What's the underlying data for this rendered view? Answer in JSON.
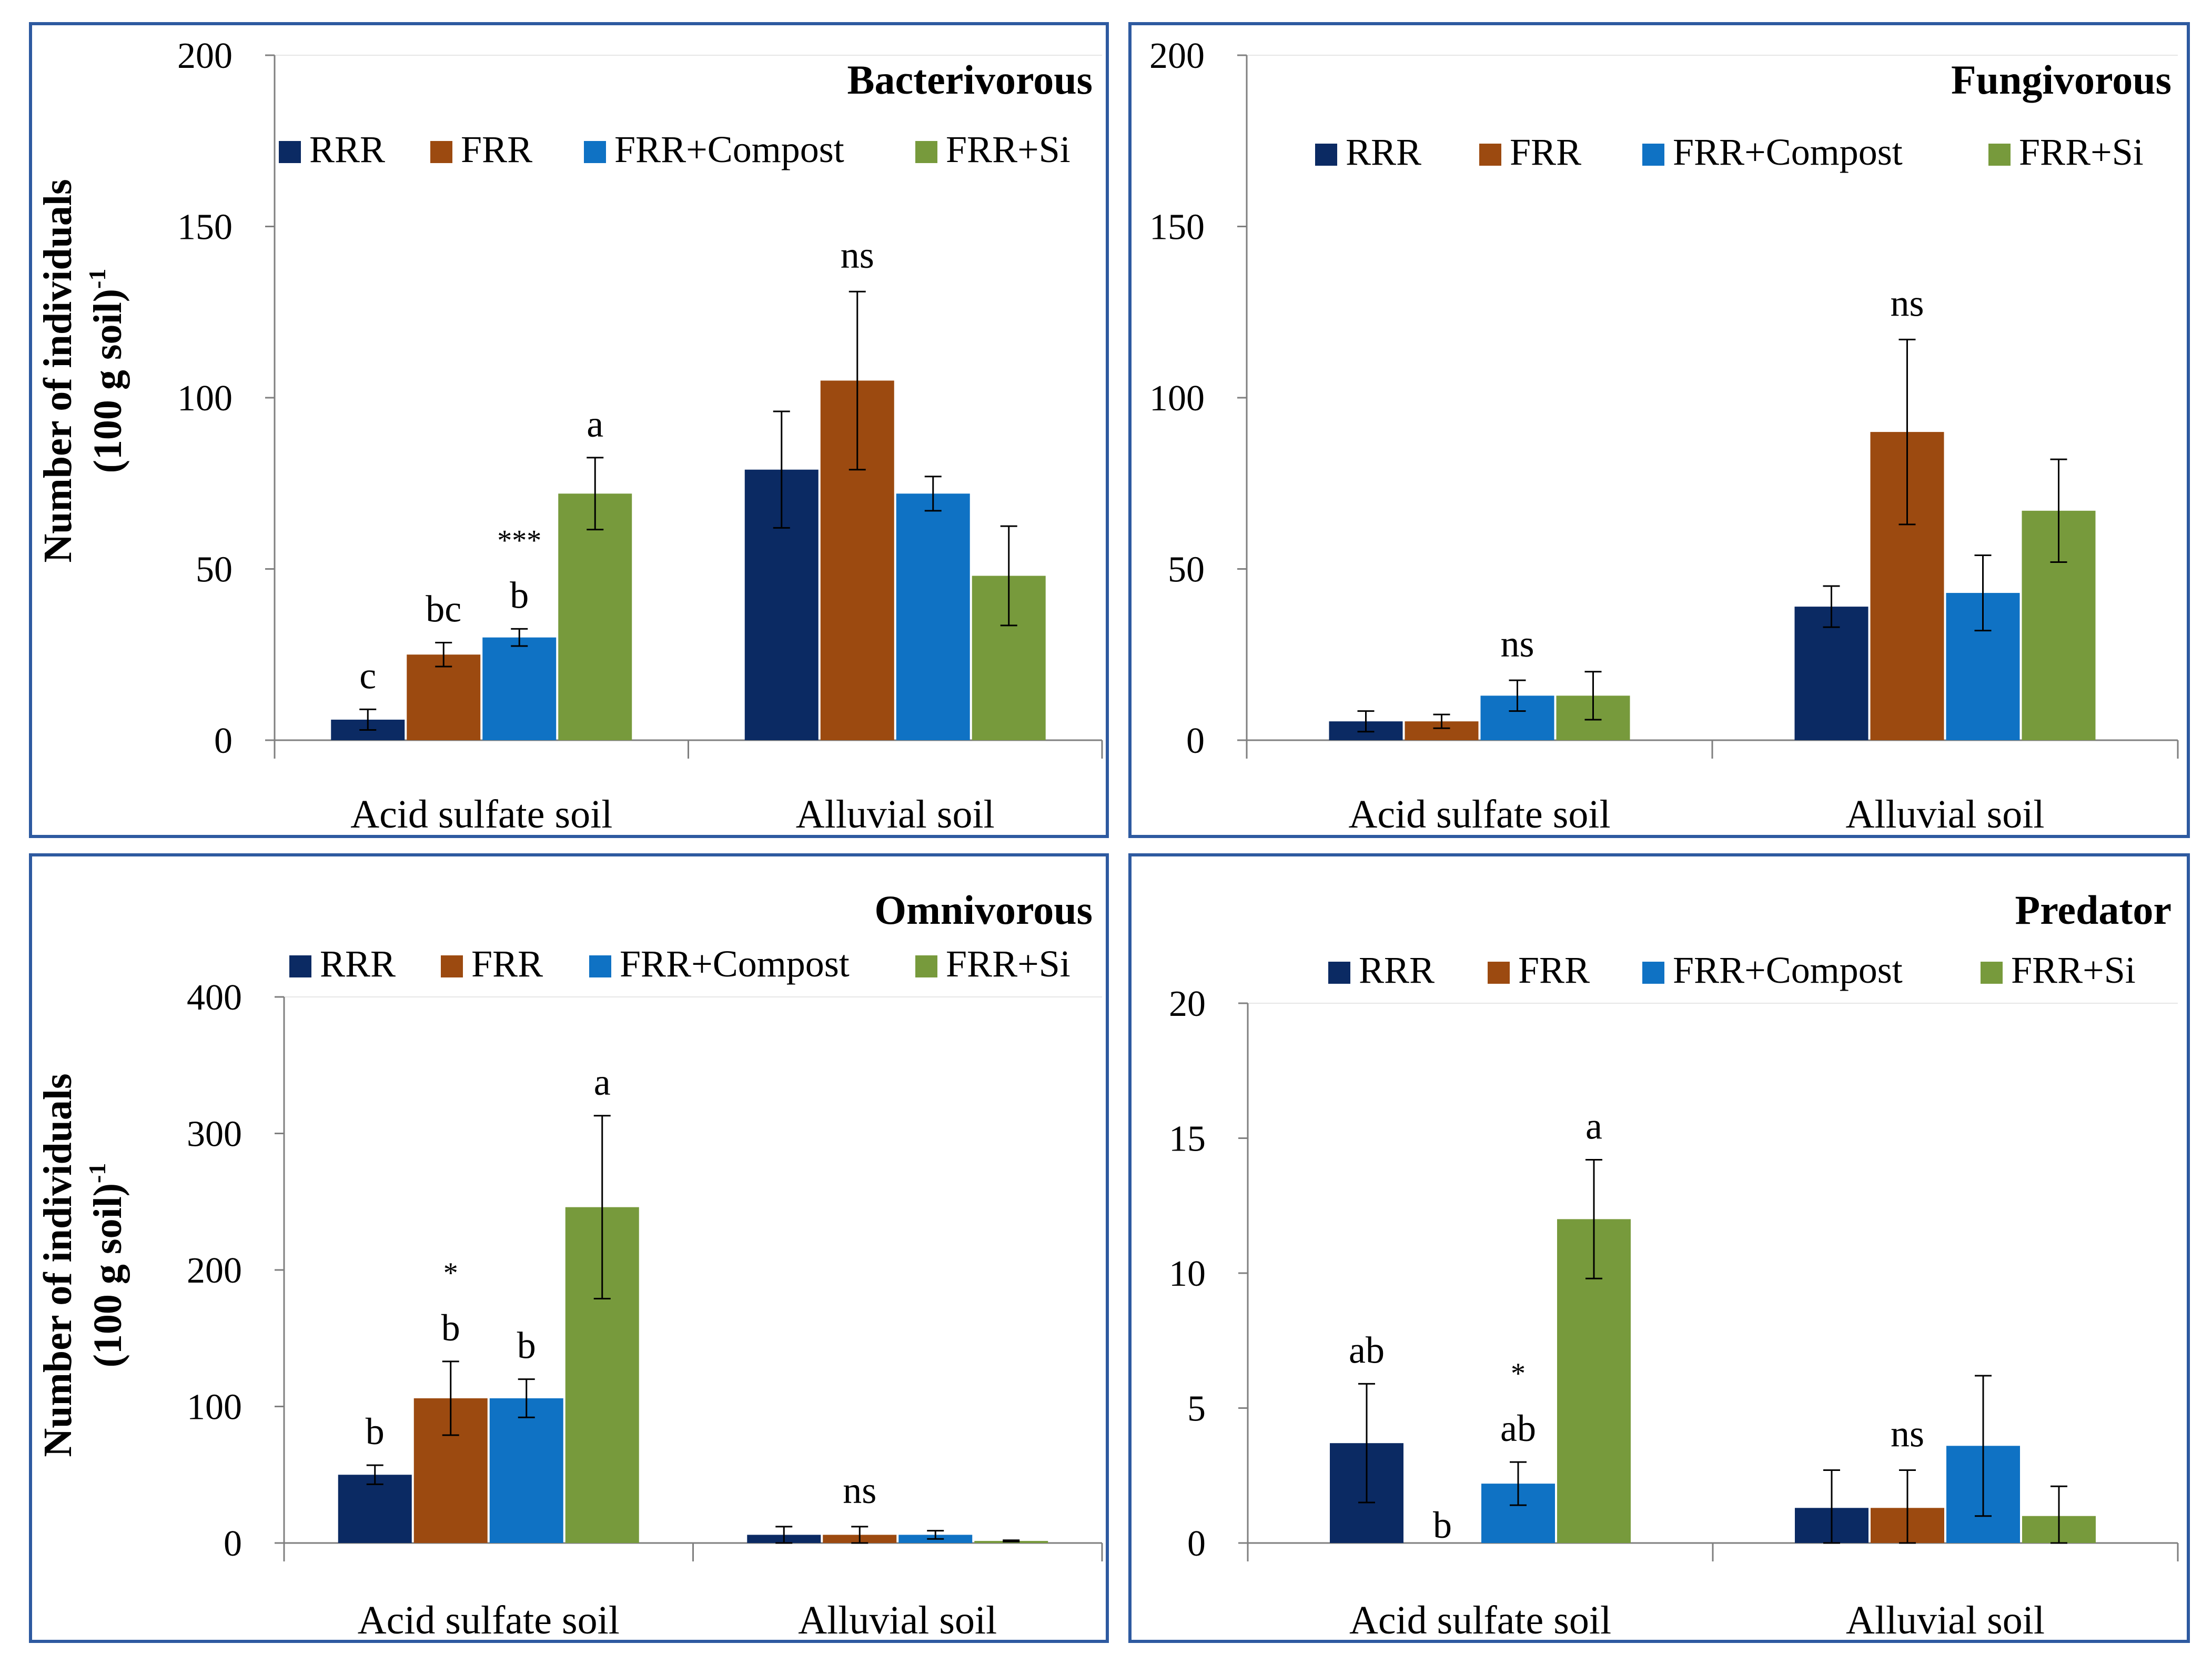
{
  "colors": {
    "RRR": "#0b2a63",
    "FRR": "#9c4a10",
    "FRR+Compost": "#0f72c4",
    "FRR+Si": "#779a3c",
    "frame": "#2e5aa0",
    "axis": "#7f7f7f",
    "grid": "#e6e6e6"
  },
  "chart_data": [
    {
      "type": "bar",
      "title": "Bacterivorous",
      "ylabel": "Number of individuals (100 g soil)-1",
      "ylabel_lines": [
        "Number of individuals",
        "(100 g soil)",
        "-1"
      ],
      "ylim": [
        0,
        200
      ],
      "yticks": [
        "0",
        "50",
        "100",
        "150",
        "200"
      ],
      "legend_position": "top",
      "categories": [
        "Acid sulfate soil",
        "Alluvial soil"
      ],
      "series": [
        {
          "name": "RRR",
          "values": [
            6,
            79
          ],
          "errors": [
            3,
            17
          ]
        },
        {
          "name": "FRR",
          "values": [
            25,
            105
          ],
          "errors": [
            3.5,
            26
          ]
        },
        {
          "name": "FRR+Compost",
          "values": [
            30,
            72
          ],
          "errors": [
            2.5,
            5
          ]
        },
        {
          "name": "FRR+Si",
          "values": [
            72,
            48
          ],
          "errors": [
            10.5,
            14.5
          ]
        }
      ],
      "letters": [
        [
          "c",
          "bc",
          "b",
          "a"
        ],
        [
          "",
          "",
          "",
          ""
        ]
      ],
      "annotations": [
        {
          "text": "***",
          "category": 0,
          "series": 2
        },
        {
          "text": "ns",
          "category": 1,
          "series": 1
        }
      ]
    },
    {
      "type": "bar",
      "title": "Fungivorous",
      "ylabel": "",
      "ylim": [
        0,
        200
      ],
      "yticks": [
        "0",
        "50",
        "100",
        "150",
        "200"
      ],
      "legend_position": "top",
      "categories": [
        "Acid sulfate soil",
        "Alluvial soil"
      ],
      "series": [
        {
          "name": "RRR",
          "values": [
            5.5,
            39
          ],
          "errors": [
            3,
            6
          ]
        },
        {
          "name": "FRR",
          "values": [
            5.5,
            90
          ],
          "errors": [
            2,
            27
          ]
        },
        {
          "name": "FRR+Compost",
          "values": [
            13,
            43
          ],
          "errors": [
            4.5,
            11
          ]
        },
        {
          "name": "FRR+Si",
          "values": [
            13,
            67
          ],
          "errors": [
            7,
            15
          ]
        }
      ],
      "letters": [
        [
          "",
          "",
          "",
          ""
        ],
        [
          "",
          "",
          "",
          ""
        ]
      ],
      "annotations": [
        {
          "text": "ns",
          "category": 0,
          "series": 2
        },
        {
          "text": "ns",
          "category": 1,
          "series": 1
        }
      ]
    },
    {
      "type": "bar",
      "title": "Omnivorous",
      "ylabel": "Number of individuals (100 g soil)-1",
      "ylabel_lines": [
        "Number of individuals",
        "(100 g soil)",
        "-1"
      ],
      "ylim": [
        0,
        400
      ],
      "yticks": [
        "0",
        "100",
        "200",
        "300",
        "400"
      ],
      "legend_position": "top",
      "categories": [
        "Acid sulfate soil",
        "Alluvial soil"
      ],
      "series": [
        {
          "name": "RRR",
          "values": [
            50,
            6
          ],
          "errors": [
            7,
            6
          ]
        },
        {
          "name": "FRR",
          "values": [
            106,
            6
          ],
          "errors": [
            27,
            6
          ]
        },
        {
          "name": "FRR+Compost",
          "values": [
            106,
            6
          ],
          "errors": [
            14,
            3
          ]
        },
        {
          "name": "FRR+Si",
          "values": [
            246,
            1.5
          ],
          "errors": [
            67,
            0.5
          ]
        }
      ],
      "letters": [
        [
          "b",
          "b",
          "b",
          "a"
        ],
        [
          "",
          "",
          "",
          ""
        ]
      ],
      "annotations": [
        {
          "text": "*",
          "category": 0,
          "series": 1
        },
        {
          "text": "ns",
          "category": 1,
          "series": 1
        }
      ]
    },
    {
      "type": "bar",
      "title": "Predator",
      "ylabel": "",
      "ylim": [
        0,
        20
      ],
      "yticks": [
        "0",
        "5",
        "10",
        "15",
        "20"
      ],
      "legend_position": "top",
      "categories": [
        "Acid sulfate soil",
        "Alluvial soil"
      ],
      "series": [
        {
          "name": "RRR",
          "values": [
            3.7,
            1.3
          ],
          "errors": [
            2.2,
            1.4
          ]
        },
        {
          "name": "FRR",
          "values": [
            0,
            1.3
          ],
          "errors": [
            0,
            1.4
          ]
        },
        {
          "name": "FRR+Compost",
          "values": [
            2.2,
            3.6
          ],
          "errors": [
            0.8,
            2.6
          ]
        },
        {
          "name": "FRR+Si",
          "values": [
            12,
            1
          ],
          "errors": [
            2.2,
            1.1
          ]
        }
      ],
      "letters": [
        [
          "ab",
          "b",
          "ab",
          "a"
        ],
        [
          "",
          "",
          "",
          ""
        ]
      ],
      "annotations": [
        {
          "text": "*",
          "category": 0,
          "series": 2
        },
        {
          "text": "ns",
          "category": 1,
          "series": 1
        }
      ]
    }
  ]
}
